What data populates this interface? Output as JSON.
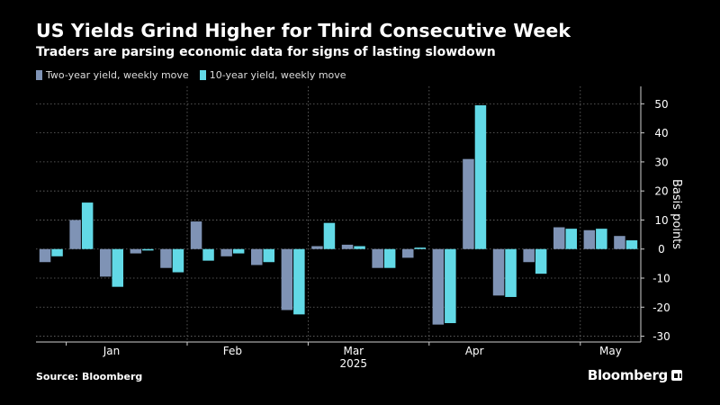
{
  "title": "US Yields Grind Higher for Third Consecutive Week",
  "subtitle": "Traders are parsing economic data for signs of lasting slowdown",
  "source": "Source: Bloomberg",
  "brand": "Bloomberg",
  "colors": {
    "two_year": "#7f93b5",
    "ten_year": "#62d9e6",
    "background": "#000000",
    "gridline": "#6b6b6b",
    "text": "#ffffff"
  },
  "chart_data": {
    "type": "bar",
    "ylabel": "Basis points",
    "xlabel": "2025",
    "ylim": [
      -32,
      56
    ],
    "yticks": [
      50,
      40,
      30,
      20,
      10,
      0,
      -10,
      -20,
      -30
    ],
    "y_axis_side": "right",
    "grid": true,
    "legend_position": "top-left",
    "month_labels": [
      "Jan",
      "Feb",
      "Mar",
      "Apr",
      "May"
    ],
    "month_start_week_index": [
      1,
      5,
      9,
      13,
      18
    ],
    "month_label_week_index": [
      2.5,
      6.5,
      10.5,
      14.5,
      19
    ],
    "year_label": "2025",
    "series": [
      {
        "name": "Two-year yield, weekly move",
        "values": [
          -4.5,
          10.0,
          -9.5,
          -1.5,
          -6.5,
          9.5,
          -2.5,
          -5.5,
          -21.0,
          1.0,
          1.5,
          -6.5,
          -3.0,
          -26.0,
          31.0,
          -16.0,
          -4.5,
          7.5,
          6.5,
          4.5
        ]
      },
      {
        "name": "10-year yield, weekly move",
        "values": [
          -2.5,
          16.0,
          -13.0,
          -0.5,
          -8.0,
          -4.0,
          -1.5,
          -4.5,
          -22.5,
          9.0,
          1.0,
          -6.5,
          0.5,
          -25.5,
          49.5,
          -16.5,
          -8.5,
          7.0,
          7.0,
          3.0
        ]
      }
    ]
  }
}
